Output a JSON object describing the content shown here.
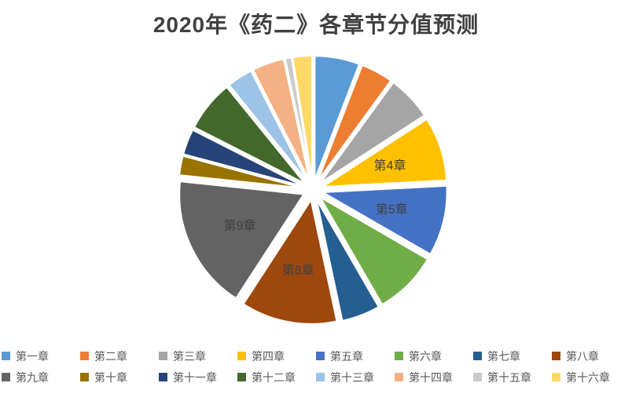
{
  "title": "2020年《药二》各章节分值预测",
  "chart_data": {
    "type": "pie",
    "title": "2020年《药二》各章节分值预测",
    "categories": [
      "第一章",
      "第二章",
      "第三章",
      "第四章",
      "第五章",
      "第六章",
      "第七章",
      "第八章",
      "第九章",
      "第十章",
      "第十一章",
      "第十二章",
      "第十三章",
      "第十四章",
      "第十五章",
      "第十六章"
    ],
    "values": [
      7,
      5,
      7,
      10,
      11,
      10,
      6,
      15,
      21,
      3,
      4,
      8,
      4,
      5,
      1,
      3
    ],
    "colors": [
      "#5B9BD5",
      "#ED7D31",
      "#A5A5A5",
      "#FFC000",
      "#4472C4",
      "#70AD47",
      "#255E91",
      "#9E480E",
      "#636363",
      "#997300",
      "#264478",
      "#43682B",
      "#9DC3E6",
      "#F4B183",
      "#C9C9C9",
      "#FFD966"
    ],
    "data_labels": [
      null,
      null,
      null,
      "第4章",
      "第5章",
      null,
      null,
      "第8章",
      "第9章",
      null,
      null,
      null,
      null,
      null,
      null,
      null
    ],
    "legend_position": "bottom",
    "exploded": true,
    "start_angle_deg": 0,
    "direction": "clockwise"
  },
  "styles": {
    "background": "#FFFFFF",
    "title_color": "#404040",
    "legend_text_color": "#595959",
    "label_color": "#404040",
    "slice_border_color": "#FFFFFF"
  }
}
